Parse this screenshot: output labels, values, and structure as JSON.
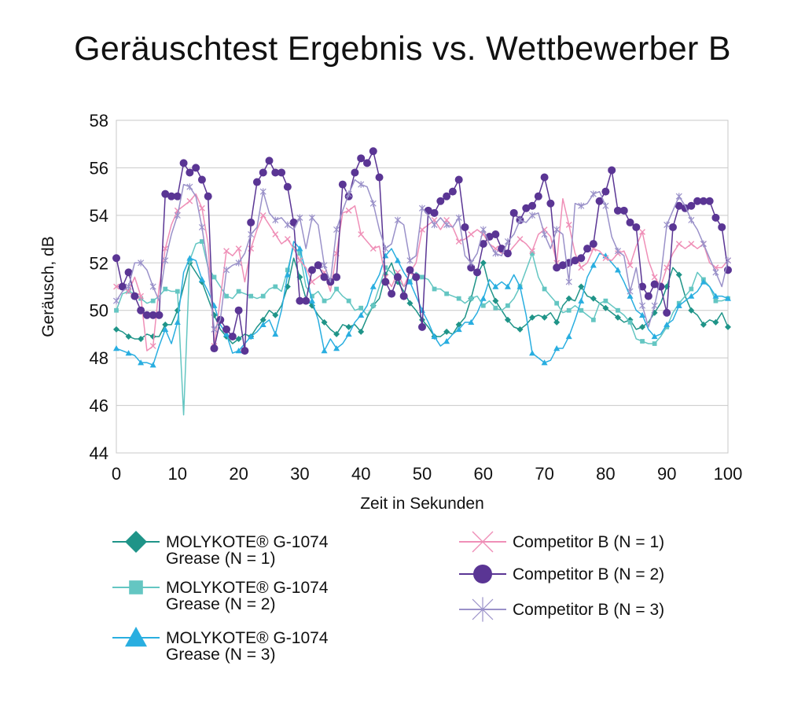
{
  "chart_data": {
    "type": "line",
    "title": "Geräuschtest Ergebnis vs. Wettbewerber B",
    "xlabel": "Zeit in Sekunden",
    "ylabel": "Geräusch, dB",
    "xlim": [
      0,
      100
    ],
    "ylim": [
      44,
      58
    ],
    "xticks": [
      0,
      10,
      20,
      30,
      40,
      50,
      60,
      70,
      80,
      90,
      100
    ],
    "yticks": [
      44,
      46,
      48,
      50,
      52,
      54,
      56,
      58
    ],
    "grid": "horizontal",
    "legend_position": "bottom",
    "series": [
      {
        "name": "MOLYKOTE® G-1074 Grease (N = 1)",
        "color": "#1f9488",
        "marker": "diamond",
        "values": [
          49.2,
          49.1,
          48.9,
          48.8,
          48.8,
          49.0,
          48.9,
          48.9,
          49.4,
          49.4,
          50.0,
          51.0,
          52.0,
          51.6,
          51.2,
          50.5,
          49.8,
          49.2,
          48.9,
          48.6,
          48.8,
          49.0,
          48.9,
          49.3,
          49.6,
          50.0,
          49.8,
          50.2,
          51.0,
          52.2,
          51.4,
          50.5,
          50.2,
          49.8,
          49.5,
          49.2,
          49.0,
          49.4,
          49.3,
          49.4,
          49.1,
          49.7,
          50.2,
          50.5,
          51.5,
          52.0,
          51.2,
          50.8,
          50.3,
          50.0,
          49.6,
          49.3,
          48.9,
          48.9,
          49.1,
          49.0,
          49.4,
          49.7,
          50.5,
          51.5,
          52.0,
          51.0,
          50.4,
          50.0,
          49.6,
          49.3,
          49.2,
          49.4,
          49.7,
          49.8,
          49.7,
          49.9,
          49.5,
          50.2,
          50.5,
          50.4,
          51.0,
          50.6,
          50.5,
          50.3,
          50.1,
          49.9,
          49.7,
          49.5,
          49.6,
          49.2,
          49.3,
          49.5,
          49.9,
          50.3,
          51.0,
          51.8,
          51.5,
          50.6,
          50.0,
          49.8,
          49.4,
          49.6,
          49.5,
          49.9,
          49.3
        ]
      },
      {
        "name": "MOLYKOTE® G-1074 Grease (N = 2)",
        "color": "#64c6c2",
        "marker": "square",
        "values": [
          50.0,
          50.7,
          50.8,
          50.7,
          50.5,
          50.3,
          50.4,
          50.6,
          50.9,
          50.8,
          50.8,
          45.6,
          52.1,
          52.8,
          52.9,
          51.8,
          51.4,
          51.0,
          50.6,
          50.5,
          50.8,
          50.7,
          50.6,
          50.5,
          50.6,
          50.9,
          51.0,
          50.8,
          51.7,
          52.7,
          52.4,
          51.0,
          50.6,
          50.8,
          50.4,
          50.5,
          50.9,
          50.6,
          50.4,
          50.0,
          50.1,
          49.8,
          50.2,
          51.0,
          51.8,
          51.6,
          51.3,
          51.0,
          51.2,
          51.6,
          51.4,
          51.3,
          50.9,
          50.9,
          50.7,
          50.6,
          50.5,
          50.3,
          50.5,
          50.6,
          50.2,
          50.4,
          50.1,
          50.0,
          50.2,
          50.5,
          51.0,
          51.7,
          52.4,
          51.4,
          50.9,
          50.6,
          50.3,
          49.9,
          50.0,
          50.2,
          50.0,
          49.8,
          49.6,
          50.3,
          50.4,
          50.2,
          50.0,
          49.8,
          49.5,
          48.8,
          48.7,
          48.6,
          48.6,
          48.9,
          49.3,
          49.9,
          50.3,
          50.6,
          50.9,
          51.6,
          51.3,
          51.0,
          50.4,
          50.4,
          50.5
        ]
      },
      {
        "name": "MOLYKOTE® G-1074 Grease (N = 3)",
        "color": "#29aee0",
        "marker": "triangle",
        "values": [
          48.4,
          48.3,
          48.2,
          48.1,
          47.8,
          47.8,
          47.7,
          48.5,
          49.2,
          48.6,
          49.5,
          51.6,
          52.2,
          52.1,
          51.3,
          50.8,
          50.2,
          49.4,
          49.0,
          48.2,
          48.3,
          48.6,
          48.9,
          49.1,
          49.4,
          49.6,
          49.0,
          50.0,
          51.5,
          52.9,
          52.6,
          51.6,
          50.4,
          49.6,
          48.3,
          48.8,
          48.4,
          48.6,
          49.0,
          49.5,
          49.8,
          50.2,
          51.0,
          51.5,
          52.3,
          52.6,
          52.1,
          51.6,
          51.2,
          50.6,
          50.0,
          49.5,
          48.9,
          48.5,
          48.7,
          49.0,
          49.2,
          49.5,
          49.5,
          49.9,
          50.5,
          51.3,
          51.0,
          51.2,
          51.0,
          51.5,
          51.0,
          49.8,
          48.2,
          48.0,
          47.8,
          47.9,
          48.4,
          48.4,
          48.9,
          49.6,
          50.4,
          51.4,
          51.9,
          52.4,
          52.3,
          52.0,
          51.7,
          51.2,
          50.6,
          50.0,
          49.8,
          49.2,
          48.9,
          49.0,
          49.4,
          49.6,
          50.2,
          50.4,
          50.6,
          50.8,
          51.2,
          51.0,
          50.6,
          50.6,
          50.5
        ]
      },
      {
        "name": "Competitor B (N = 1)",
        "color": "#ef8fb7",
        "marker": "x",
        "values": [
          51.0,
          51.0,
          50.8,
          51.4,
          50.6,
          48.3,
          48.5,
          51.0,
          52.6,
          53.6,
          54.2,
          54.4,
          54.6,
          54.9,
          54.3,
          52.8,
          48.5,
          50.5,
          52.5,
          52.3,
          52.6,
          51.2,
          52.6,
          53.4,
          54.0,
          53.6,
          53.2,
          52.8,
          53.0,
          52.6,
          52.1,
          51.8,
          51.2,
          51.4,
          51.6,
          50.8,
          52.4,
          54.1,
          54.2,
          54.4,
          53.2,
          52.9,
          52.6,
          52.7,
          51.4,
          51.0,
          51.6,
          51.0,
          51.6,
          52.0,
          53.4,
          53.6,
          53.8,
          53.4,
          53.8,
          53.5,
          52.9,
          53.0,
          53.2,
          53.4,
          53.2,
          52.8,
          52.6,
          52.4,
          52.4,
          52.7,
          53.0,
          52.8,
          52.5,
          53.2,
          53.4,
          53.1,
          52.0,
          54.7,
          53.6,
          52.4,
          51.8,
          52.0,
          52.6,
          52.5,
          52.2,
          52.1,
          52.4,
          52.5,
          51.9,
          52.7,
          53.3,
          52.1,
          51.4,
          51.0,
          51.8,
          52.4,
          52.8,
          52.6,
          52.8,
          52.6,
          52.8,
          52.0,
          51.8,
          51.8,
          52.1
        ]
      },
      {
        "name": "Competitor B (N = 2)",
        "color": "#5a3594",
        "marker": "circle",
        "values": [
          52.2,
          51.0,
          51.6,
          50.6,
          50.0,
          49.8,
          49.8,
          49.8,
          54.9,
          54.8,
          54.8,
          56.2,
          55.8,
          56.0,
          55.5,
          54.8,
          48.4,
          49.6,
          49.2,
          48.9,
          50.0,
          48.3,
          53.7,
          55.4,
          55.8,
          56.3,
          55.8,
          55.8,
          55.2,
          53.7,
          50.4,
          50.4,
          51.7,
          51.9,
          51.4,
          51.2,
          51.4,
          55.3,
          54.8,
          55.8,
          56.4,
          56.2,
          56.7,
          55.6,
          51.2,
          50.7,
          51.4,
          50.6,
          51.7,
          51.4,
          49.3,
          54.2,
          54.1,
          54.6,
          54.8,
          55.0,
          55.5,
          53.5,
          51.8,
          51.6,
          52.8,
          53.1,
          53.2,
          52.6,
          52.4,
          54.1,
          53.8,
          54.3,
          54.4,
          54.8,
          55.6,
          54.5,
          51.8,
          51.9,
          52.0,
          52.1,
          52.2,
          52.6,
          52.8,
          54.6,
          55.0,
          55.9,
          54.2,
          54.2,
          53.7,
          53.5,
          51.0,
          50.6,
          51.1,
          51.0,
          49.9,
          53.5,
          54.4,
          54.3,
          54.4,
          54.6,
          54.6,
          54.6,
          53.9,
          53.5,
          51.7
        ]
      },
      {
        "name": "Competitor B (N = 3)",
        "color": "#9a91c9",
        "marker": "asterisk",
        "values": [
          50.4,
          50.8,
          51.0,
          52.0,
          52.0,
          51.7,
          51.0,
          50.4,
          52.1,
          53.2,
          54.0,
          55.3,
          55.2,
          54.8,
          53.5,
          51.8,
          49.2,
          49.6,
          51.7,
          51.9,
          52.0,
          52.4,
          53.2,
          53.5,
          55.0,
          54.1,
          53.8,
          53.9,
          53.6,
          53.4,
          53.9,
          52.6,
          53.9,
          53.6,
          51.9,
          51.2,
          53.4,
          54.2,
          54.9,
          55.5,
          55.3,
          55.2,
          54.5,
          53.4,
          52.6,
          52.8,
          53.8,
          53.6,
          52.1,
          52.3,
          54.3,
          54.0,
          53.6,
          53.9,
          53.6,
          53.5,
          53.9,
          52.3,
          52.0,
          52.4,
          53.4,
          52.8,
          52.4,
          52.3,
          52.9,
          53.2,
          53.8,
          53.7,
          54.0,
          54.1,
          53.2,
          52.6,
          53.4,
          53.2,
          51.2,
          54.5,
          54.4,
          54.5,
          54.9,
          55.0,
          54.4,
          53.1,
          52.5,
          52.3,
          50.8,
          51.8,
          50.2,
          49.3,
          50.2,
          51.4,
          53.6,
          54.2,
          54.8,
          54.4,
          53.8,
          53.4,
          52.8,
          52.2,
          51.6,
          51.0,
          52.1
        ]
      }
    ]
  }
}
